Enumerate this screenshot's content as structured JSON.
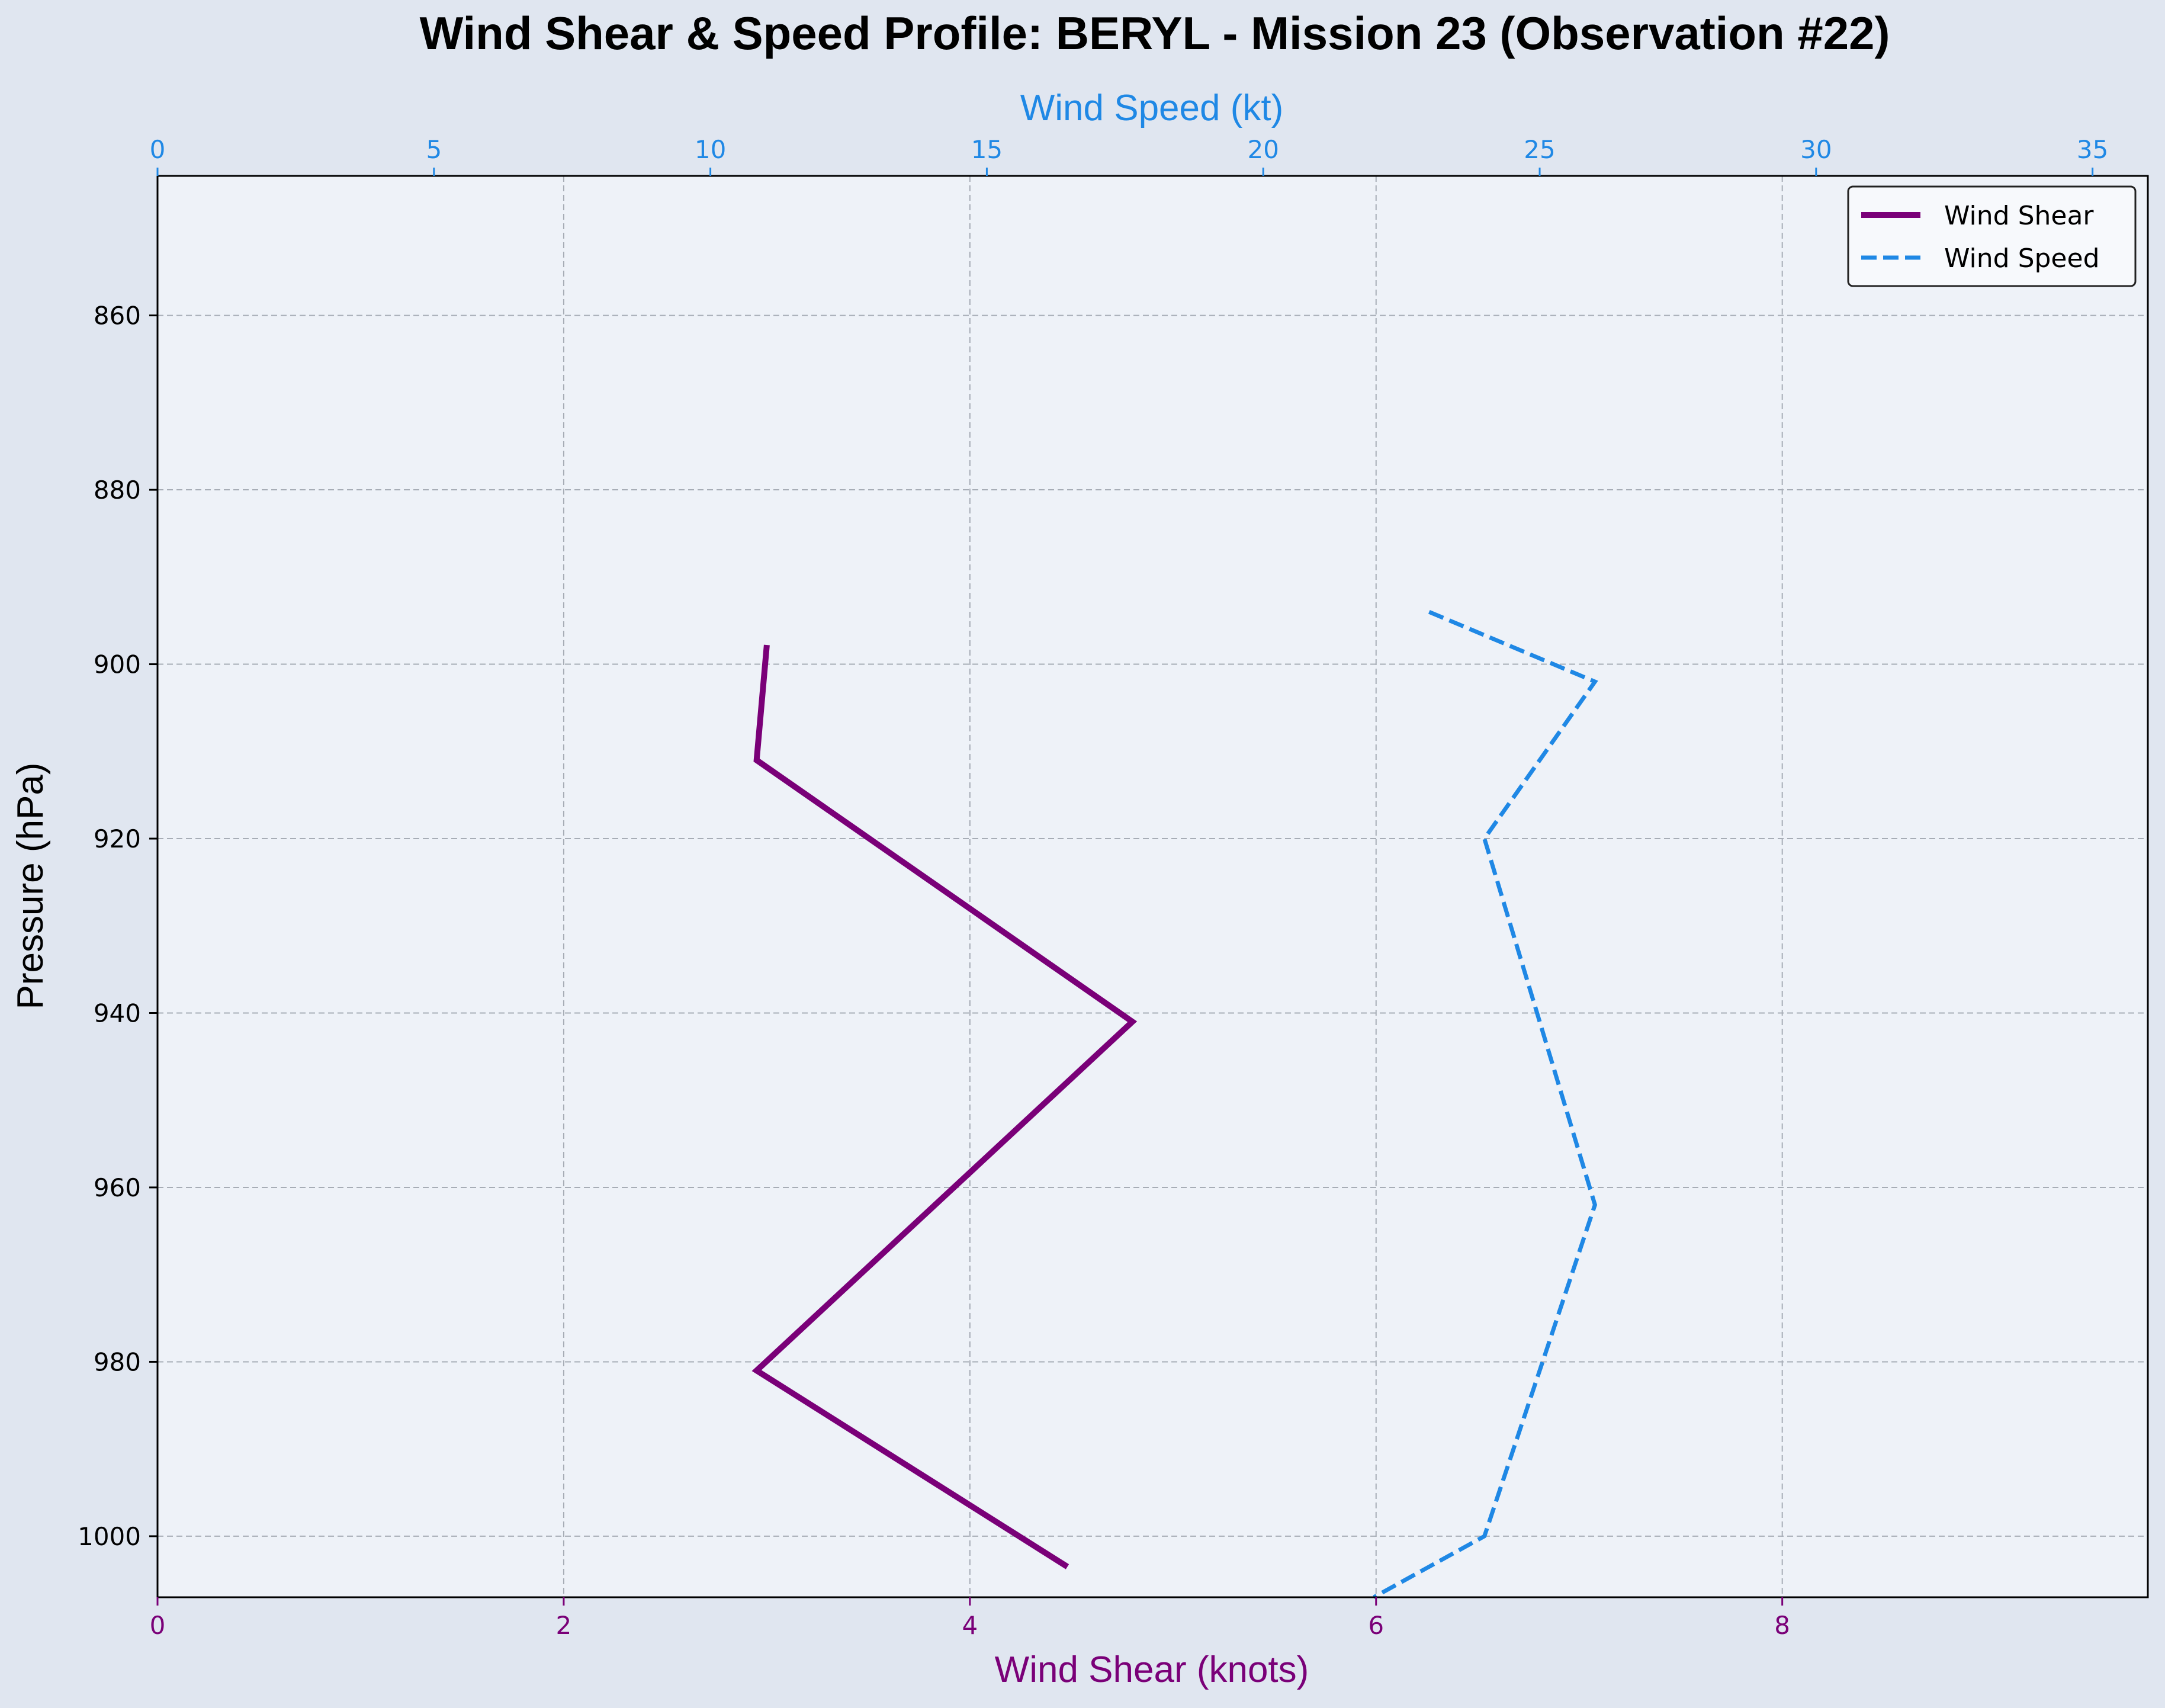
{
  "chart_data": {
    "type": "line",
    "title": "Wind Shear & Speed Profile: BERYL - Mission 23 (Observation #22)",
    "ylabel": "Pressure (hPa)",
    "ylim": [
      1007,
      844
    ],
    "yticks": [
      860,
      880,
      900,
      920,
      940,
      960,
      980,
      1000
    ],
    "y_inverted": true,
    "grid": true,
    "legend_position": "top-right",
    "bottom_axis": {
      "label": "Wind Shear (knots)",
      "range": [
        0,
        9.8
      ],
      "ticks": [
        0,
        2,
        4,
        6,
        8
      ],
      "color": "#7a0078"
    },
    "top_axis": {
      "label": "Wind Speed (kt)",
      "range": [
        0,
        36
      ],
      "ticks": [
        0,
        5,
        10,
        15,
        20,
        25,
        30,
        35
      ],
      "color": "#1f88e5"
    },
    "series": [
      {
        "name": "Wind Shear",
        "axis": "bottom",
        "style": "solid",
        "color": "#7a0078",
        "points": [
          {
            "x": 3.0,
            "y": 897.8
          },
          {
            "x": 2.95,
            "y": 911.0
          },
          {
            "x": 4.8,
            "y": 941.0
          },
          {
            "x": 2.95,
            "y": 981.0
          },
          {
            "x": 4.48,
            "y": 1003.5
          }
        ]
      },
      {
        "name": "Wind Speed",
        "axis": "top",
        "style": "dashed",
        "color": "#1f88e5",
        "points": [
          {
            "x": 23.0,
            "y": 894.0
          },
          {
            "x": 26.0,
            "y": 902.0
          },
          {
            "x": 24.0,
            "y": 920.0
          },
          {
            "x": 26.0,
            "y": 962.0
          },
          {
            "x": 24.0,
            "y": 1000.0
          },
          {
            "x": 22.0,
            "y": 1007.0
          }
        ]
      }
    ]
  }
}
